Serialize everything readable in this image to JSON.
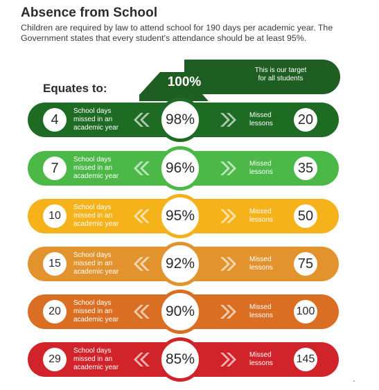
{
  "header": {
    "title": "Absence from School",
    "intro": "Children are required by law to attend school for 190 days per academic year. The Government states that every student's attendance should be at least 95%."
  },
  "equates_label": "Equates to:",
  "target": {
    "percent": "100%",
    "text": "This is our target\nfor all students",
    "color": "#1e5e22"
  },
  "rows": [
    {
      "days": "4",
      "days_label": "School days\nmissed in an\nacademic year",
      "percent": "98%",
      "missed_label": "Missed\nlessons",
      "lessons": "20",
      "color": "#1e6b24",
      "ring": "#1e6b24"
    },
    {
      "days": "7",
      "days_label": "School days\nmissed in an\nacademic year",
      "percent": "96%",
      "missed_label": "Missed\nlessons",
      "lessons": "35",
      "color": "#4bb848",
      "ring": "#4bb848"
    },
    {
      "days": "10",
      "days_label": "School days\nmissed in an\nacademic year",
      "percent": "95%",
      "missed_label": "Missed\nlessons",
      "lessons": "50",
      "color": "#f6b21b",
      "ring": "#f6b21b"
    },
    {
      "days": "15",
      "days_label": "School days\nmissed in an\nacademic year",
      "percent": "92%",
      "missed_label": "Missed\nlessons",
      "lessons": "75",
      "color": "#e3932d",
      "ring": "#e3932d"
    },
    {
      "days": "20",
      "days_label": "School days\nmissed in an\nacademic year",
      "percent": "90%",
      "missed_label": "Missed\nlessons",
      "lessons": "100",
      "color": "#da6f23",
      "ring": "#da6f23"
    },
    {
      "days": "29",
      "days_label": "School days\nmissed in an\nacademic year",
      "percent": "85%",
      "missed_label": "Missed\nlessons",
      "lessons": "145",
      "color": "#d0242a",
      "ring": "#d0242a"
    }
  ]
}
